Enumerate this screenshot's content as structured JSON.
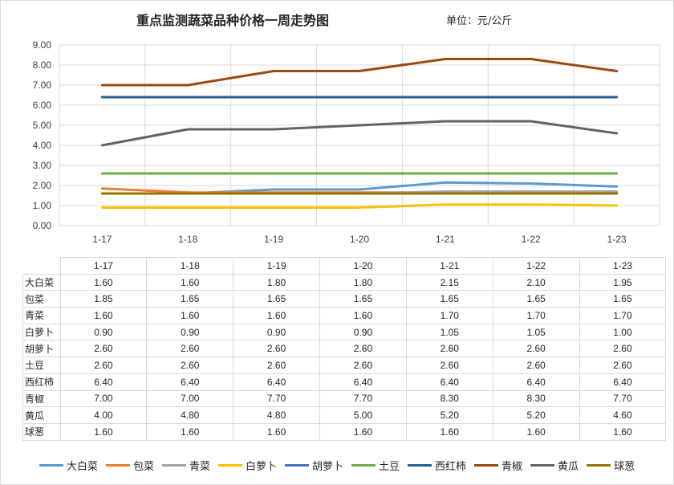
{
  "header": {
    "title": "重点监测蔬菜品种价格一周走势图",
    "unit": "单位：元/公斤"
  },
  "chart_data": {
    "type": "line",
    "title": "重点监测蔬菜品种价格一周走势图",
    "xlabel": "",
    "ylabel": "",
    "ylim": [
      0,
      9
    ],
    "yticks": [
      "0.00",
      "1.00",
      "2.00",
      "3.00",
      "4.00",
      "5.00",
      "6.00",
      "7.00",
      "8.00",
      "9.00"
    ],
    "grid": true,
    "legend_position": "bottom",
    "categories": [
      "1-17",
      "1-18",
      "1-19",
      "1-20",
      "1-21",
      "1-22",
      "1-23"
    ],
    "series": [
      {
        "name": "大白菜",
        "color": "#5b9bd5",
        "values": [
          1.6,
          1.6,
          1.8,
          1.8,
          2.15,
          2.1,
          1.95
        ],
        "labels": [
          "1.60",
          "1.60",
          "1.80",
          "1.80",
          "2.15",
          "2.10",
          "1.95"
        ]
      },
      {
        "name": "包菜",
        "color": "#ed7d31",
        "values": [
          1.85,
          1.65,
          1.65,
          1.65,
          1.65,
          1.65,
          1.65
        ],
        "labels": [
          "1.85",
          "1.65",
          "1.65",
          "1.65",
          "1.65",
          "1.65",
          "1.65"
        ]
      },
      {
        "name": "青菜",
        "color": "#a5a5a5",
        "values": [
          1.6,
          1.6,
          1.6,
          1.6,
          1.7,
          1.7,
          1.7
        ],
        "labels": [
          "1.60",
          "1.60",
          "1.60",
          "1.60",
          "1.70",
          "1.70",
          "1.70"
        ]
      },
      {
        "name": "白萝卜",
        "color": "#ffc000",
        "values": [
          0.9,
          0.9,
          0.9,
          0.9,
          1.05,
          1.05,
          1.0
        ],
        "labels": [
          "0.90",
          "0.90",
          "0.90",
          "0.90",
          "1.05",
          "1.05",
          "1.00"
        ]
      },
      {
        "name": "胡萝卜",
        "color": "#4472c4",
        "values": [
          2.6,
          2.6,
          2.6,
          2.6,
          2.6,
          2.6,
          2.6
        ],
        "labels": [
          "2.60",
          "2.60",
          "2.60",
          "2.60",
          "2.60",
          "2.60",
          "2.60"
        ]
      },
      {
        "name": "土豆",
        "color": "#70ad47",
        "values": [
          2.6,
          2.6,
          2.6,
          2.6,
          2.6,
          2.6,
          2.6
        ],
        "labels": [
          "2.60",
          "2.60",
          "2.60",
          "2.60",
          "2.60",
          "2.60",
          "2.60"
        ]
      },
      {
        "name": "西红柿",
        "color": "#255e91",
        "values": [
          6.4,
          6.4,
          6.4,
          6.4,
          6.4,
          6.4,
          6.4
        ],
        "labels": [
          "6.40",
          "6.40",
          "6.40",
          "6.40",
          "6.40",
          "6.40",
          "6.40"
        ]
      },
      {
        "name": "青椒",
        "color": "#9e480e",
        "values": [
          7.0,
          7.0,
          7.7,
          7.7,
          8.3,
          8.3,
          7.7
        ],
        "labels": [
          "7.00",
          "7.00",
          "7.70",
          "7.70",
          "8.30",
          "8.30",
          "7.70"
        ]
      },
      {
        "name": "黄瓜",
        "color": "#636363",
        "values": [
          4.0,
          4.8,
          4.8,
          5.0,
          5.2,
          5.2,
          4.6
        ],
        "labels": [
          "4.00",
          "4.80",
          "4.80",
          "5.00",
          "5.20",
          "5.20",
          "4.60"
        ]
      },
      {
        "name": "球葱",
        "color": "#997300",
        "values": [
          1.6,
          1.6,
          1.6,
          1.6,
          1.6,
          1.6,
          1.6
        ],
        "labels": [
          "1.60",
          "1.60",
          "1.60",
          "1.60",
          "1.60",
          "1.60",
          "1.60"
        ]
      }
    ]
  }
}
